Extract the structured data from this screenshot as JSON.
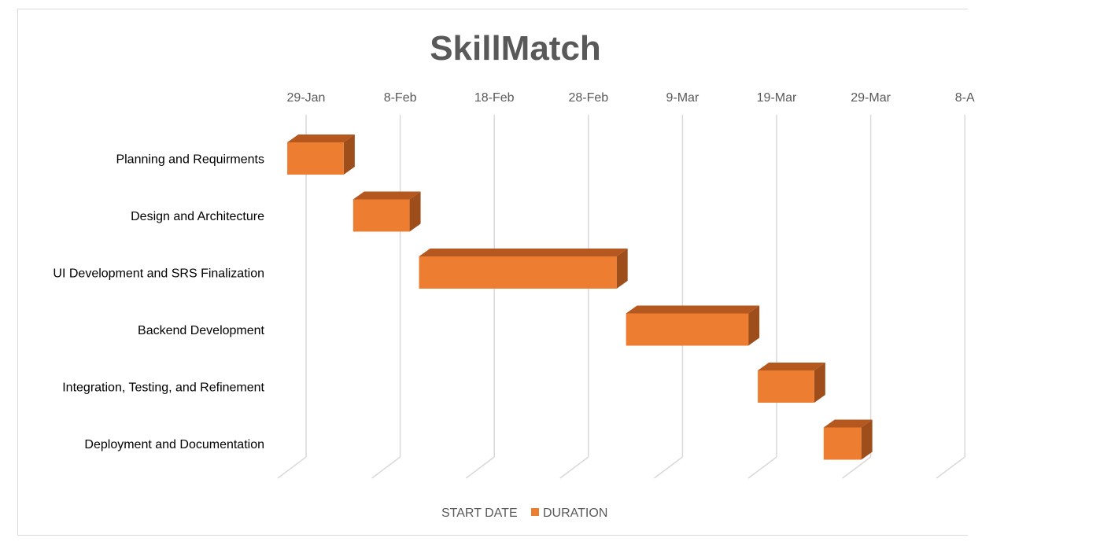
{
  "chart_data": {
    "type": "bar",
    "orientation": "horizontal",
    "stacked": true,
    "style": "3d-gantt",
    "title": "SkillMatch",
    "x_tick_labels": [
      "29-Jan",
      "8-Feb",
      "18-Feb",
      "28-Feb",
      "9-Mar",
      "19-Mar",
      "29-Mar",
      "8-A"
    ],
    "categories": [
      "Planning and Requirments",
      "Design and Architecture ",
      "UI Development and SRS Finalization",
      "Backend Development",
      "Integration, Testing, and Refinement ",
      "Deployment and Documentation"
    ],
    "series": [
      {
        "name": "START DATE",
        "visible": false,
        "values": [
          "2025-01-27",
          "2025-02-03",
          "2025-02-10",
          "2025-03-04",
          "2025-03-18",
          "2025-03-25"
        ]
      },
      {
        "name": "DURATION",
        "color": "#ED7D31",
        "values": [
          6,
          6,
          21,
          13,
          6,
          4
        ]
      }
    ],
    "grid": true,
    "legend": "bottom"
  }
}
